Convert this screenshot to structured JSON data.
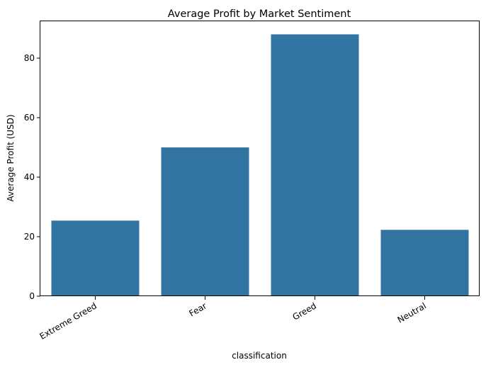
{
  "chart_data": {
    "type": "bar",
    "title": "Average Profit by Market Sentiment",
    "xlabel": "classification",
    "ylabel": "Average Profit (USD)",
    "categories": [
      "Extreme Greed",
      "Fear",
      "Greed",
      "Neutral"
    ],
    "values": [
      25.4,
      50.0,
      88.0,
      22.3
    ],
    "ylim": [
      0,
      92.4
    ],
    "yticks": [
      0,
      20,
      40,
      60,
      80
    ],
    "bar_color": "#3274a1",
    "grid": false,
    "x_tick_rotation_deg": -30
  }
}
